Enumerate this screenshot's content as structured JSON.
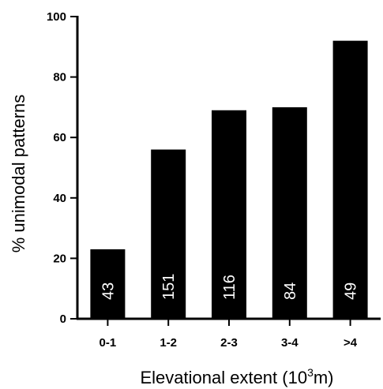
{
  "chart_data": {
    "type": "bar",
    "categories": [
      "0-1",
      "1-2",
      "2-3",
      "3-4",
      ">4"
    ],
    "values": [
      23,
      56,
      69,
      70,
      92
    ],
    "bar_labels": [
      "43",
      "151",
      "116",
      "84",
      "49"
    ],
    "xlabel": "Elevational extent (10",
    "xlabel_sup": "3",
    "xlabel_suffix": "m)",
    "ylabel": "% unimodal patterns",
    "ylim": [
      0,
      100
    ],
    "yticks": [
      "0",
      "20",
      "40",
      "60",
      "80",
      "100"
    ],
    "grid": false,
    "bar_color": "#000000",
    "label_color": "#ffffff"
  }
}
